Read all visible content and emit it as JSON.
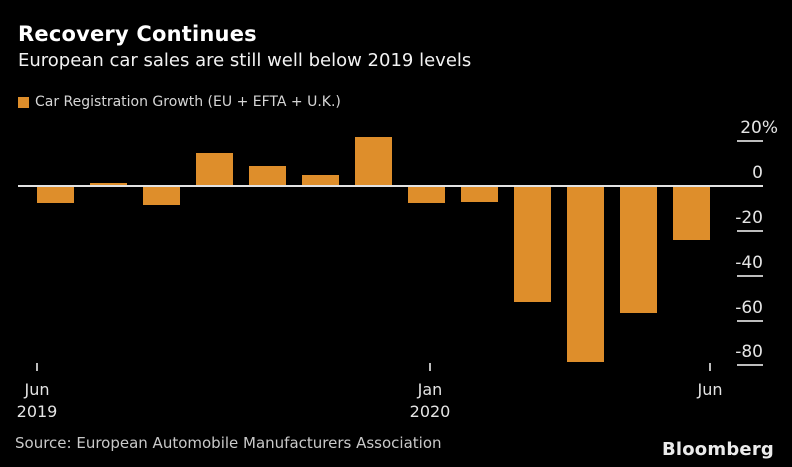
{
  "header": {
    "title": "Recovery Continues",
    "subtitle": "European car sales are still well below 2019 levels"
  },
  "legend": {
    "label": "Car Registration Growth (EU + EFTA + U.K.)",
    "swatch_color": "#DE8E2B"
  },
  "footer": {
    "source": "Source: European Automobile Manufacturers Association",
    "brand": "Bloomberg"
  },
  "colors": {
    "background": "#000000",
    "bar": "#DE8E2B",
    "zero_line": "#E2E2E2",
    "tick": "#BDBDBD",
    "axis_text": "#E4E4E4",
    "title_text": "#FFFFFF"
  },
  "chart_data": {
    "type": "bar",
    "title": "Recovery Continues",
    "subtitle": "European car sales are still well below 2019 levels",
    "series_name": "Car Registration Growth (EU + EFTA + U.K.)",
    "unit": "%",
    "categories": [
      "Jun 2019",
      "Jul 2019",
      "Aug 2019",
      "Sep 2019",
      "Oct 2019",
      "Nov 2019",
      "Dec 2019",
      "Jan 2020",
      "Feb 2020",
      "Mar 2020",
      "Apr 2020",
      "May 2020",
      "Jun 2020"
    ],
    "values": [
      -7.8,
      1.4,
      -8.4,
      14.5,
      8.7,
      4.9,
      21.7,
      -7.4,
      -7.2,
      -51.8,
      -78.3,
      -56.8,
      -24.1
    ],
    "bar_color": "#DE8E2B",
    "ylim": [
      -88,
      24
    ],
    "yticks": [
      {
        "value": 20,
        "label": "20%"
      },
      {
        "value": 0,
        "label": "0"
      },
      {
        "value": -20,
        "label": "-20"
      },
      {
        "value": -40,
        "label": "-40"
      },
      {
        "value": -60,
        "label": "-60"
      },
      {
        "value": -80,
        "label": "-80"
      }
    ],
    "xticks": [
      {
        "lines": [
          "Jun",
          "2019"
        ]
      },
      {
        "lines": [
          "Jan",
          "2020"
        ]
      },
      {
        "lines": [
          "Jun"
        ]
      }
    ],
    "grid": false,
    "legend_position": "top-left",
    "y_axis_side": "right",
    "background": "black"
  }
}
